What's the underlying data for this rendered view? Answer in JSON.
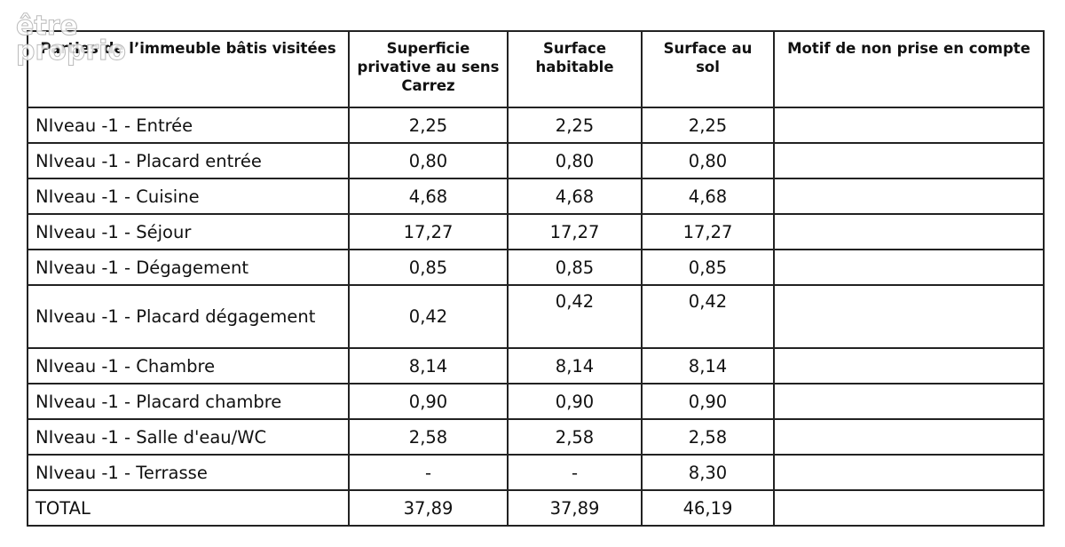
{
  "watermark": {
    "lines": [
      "être",
      "proprio"
    ]
  },
  "table": {
    "header": [
      "Parties de l’immeuble bâtis visitées",
      "Superficie privative au sens Carrez",
      "Surface habitable",
      "Surface au sol",
      "Motif de non prise en compte"
    ],
    "rows": [
      [
        "NIveau -1 - Entrée",
        "2,25",
        "2,25",
        "2,25"
      ],
      [
        "NIveau -1 - Placard entrée",
        "0,80",
        "0,80",
        "0,80"
      ],
      [
        "NIveau -1 - Cuisine",
        "4,68",
        "4,68",
        "4,68"
      ],
      [
        "NIveau -1 - Séjour",
        "17,27",
        "17,27",
        "17,27"
      ],
      [
        "NIveau -1 - Dégagement",
        "0,85",
        "0,85",
        "0,85"
      ],
      [
        "NIveau -1 - Placard dégagement",
        "0,42",
        "0,42",
        "0,42"
      ],
      [
        "NIveau -1 - Chambre",
        "8,14",
        "8,14",
        "8,14"
      ],
      [
        "NIveau -1 - Placard chambre",
        "0,90",
        "0,90",
        "0,90"
      ],
      [
        "NIveau -1 - Salle d'eau/WC",
        "2,58",
        "2,58",
        "2,58"
      ],
      [
        "NIveau -1 - Terrasse",
        "-",
        "-",
        "8,30"
      ],
      [
        "TOTAL",
        "37,89",
        "37,89",
        "46,19"
      ]
    ]
  }
}
